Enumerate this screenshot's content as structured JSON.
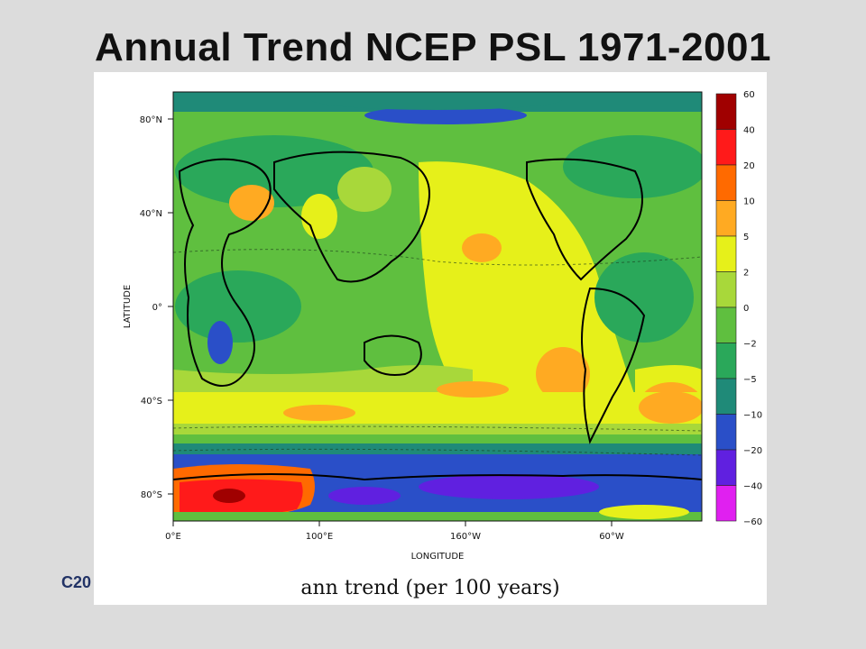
{
  "slide": {
    "title": "Annual Trend NCEP PSL 1971-2001",
    "footer_fragment": "C20"
  },
  "figure": {
    "caption": "ann trend (per 100 years)",
    "axes": {
      "xlabel": "LONGITUDE",
      "ylabel": "LATITUDE",
      "x_ticks": [
        "0°E",
        "100°E",
        "160°W",
        "60°W"
      ],
      "y_ticks": [
        "80°N",
        "40°N",
        "0°",
        "40°S",
        "80°S"
      ]
    },
    "colorbar": {
      "labels": [
        "60",
        "40",
        "20",
        "10",
        "5",
        "2",
        "0",
        "−2",
        "−5",
        "−10",
        "−20",
        "−40",
        "−60"
      ],
      "colors": [
        "#a00000",
        "#ff1a1a",
        "#ff6a00",
        "#ffaa22",
        "#e6f01a",
        "#a8d83a",
        "#5fbf3f",
        "#2aa85a",
        "#1f8a78",
        "#2a4fc8",
        "#6020e0",
        "#e020f0"
      ]
    }
  }
}
